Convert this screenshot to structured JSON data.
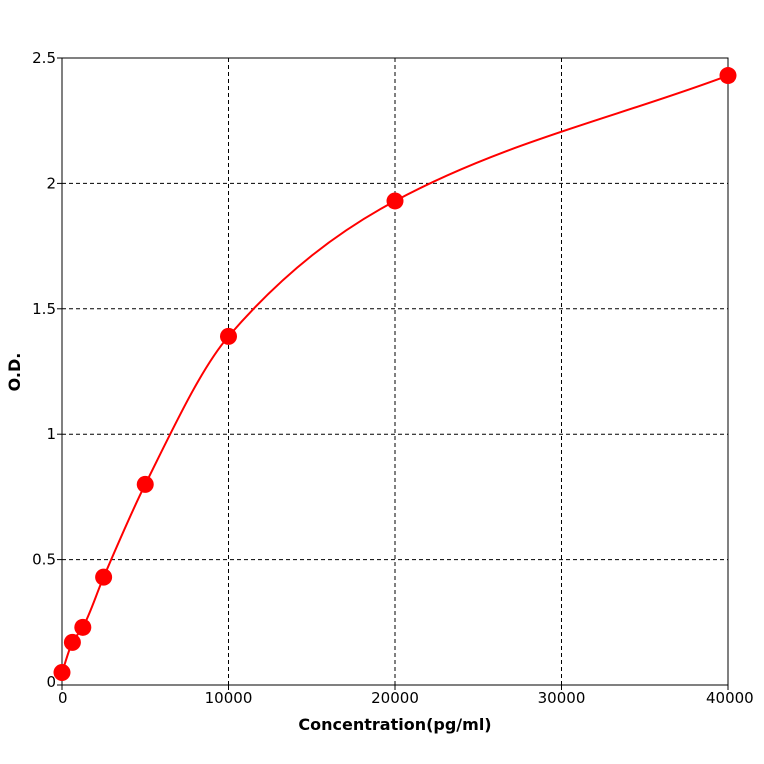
{
  "chart_data": {
    "type": "scatter",
    "title": "",
    "xlabel": "Concentration(pg/ml)",
    "ylabel": "O.D.",
    "xlim": [
      0,
      40000
    ],
    "ylim": [
      0,
      2.5
    ],
    "x_ticks": [
      0,
      10000,
      20000,
      30000,
      40000
    ],
    "x_tick_labels": [
      "0",
      "10000",
      "20000",
      "30000",
      "40000"
    ],
    "y_ticks": [
      0,
      0.5,
      1,
      1.5,
      2,
      2.5
    ],
    "y_tick_labels": [
      "0",
      "0.5",
      "1",
      "1.5",
      "2",
      "2.5"
    ],
    "grid": true,
    "legend": "none",
    "series": [
      {
        "color": "#ff0000",
        "fit_line": true,
        "points": [
          {
            "x": 0,
            "y": 0.05
          },
          {
            "x": 625,
            "y": 0.17
          },
          {
            "x": 1250,
            "y": 0.23
          },
          {
            "x": 2500,
            "y": 0.43
          },
          {
            "x": 5000,
            "y": 0.8
          },
          {
            "x": 10000,
            "y": 1.39
          },
          {
            "x": 20000,
            "y": 1.93
          },
          {
            "x": 40000,
            "y": 2.43
          }
        ]
      }
    ]
  }
}
